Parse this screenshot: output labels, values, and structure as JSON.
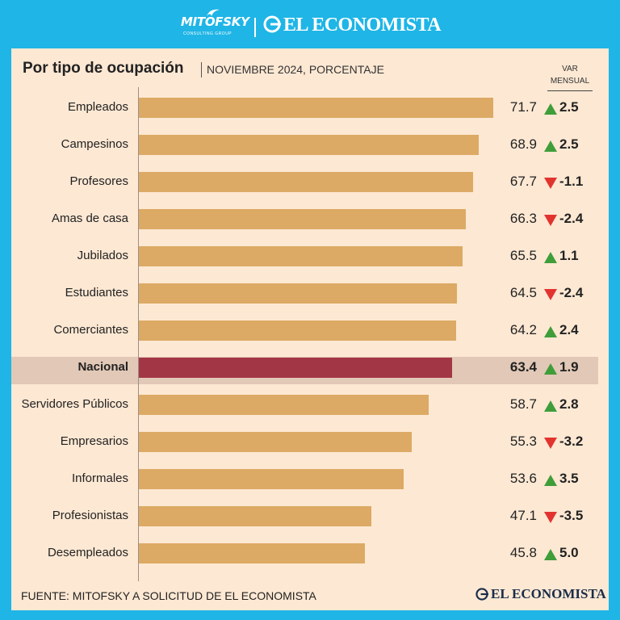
{
  "brand": {
    "mitofsky": "MITOFSKY",
    "mitofsky_tagline": "CONSULTING GROUP",
    "economista": "EL ECONOMISTA"
  },
  "title": "Por tipo de ocupación",
  "subtitle": "NOVIEMBRE 2024, PORCENTAJE",
  "var_header": "VAR MENSUAL",
  "footer": {
    "source": "FUENTE: MITOFSKY A SOLICITUD DE EL ECONOMISTA",
    "logo": "EL ECONOMISTA"
  },
  "colors": {
    "bar": "#dcaa64",
    "highlight_bar": "#a33645",
    "up": "#3f9d3a",
    "down": "#e2342f"
  },
  "chart_data": {
    "type": "bar",
    "orientation": "horizontal",
    "title": "Por tipo de ocupación",
    "subtitle": "NOVIEMBRE 2024, PORCENTAJE",
    "xlim": [
      0,
      100
    ],
    "categories": [
      "Empleados",
      "Campesinos",
      "Profesores",
      "Amas de casa",
      "Jubilados",
      "Estudiantes",
      "Comerciantes",
      "Nacional",
      "Servidores Públicos",
      "Empresarios",
      "Informales",
      "Profesionistas",
      "Desempleados"
    ],
    "values": [
      71.7,
      68.9,
      67.7,
      66.3,
      65.5,
      64.5,
      64.2,
      63.4,
      58.7,
      55.3,
      53.6,
      47.1,
      45.8
    ],
    "values_text": [
      "71.7",
      "68.9",
      "67.7",
      "66.3",
      "65.5",
      "64.5",
      "64.2",
      "63.4",
      "58.7",
      "55.3",
      "53.6",
      "47.1",
      "45.8"
    ],
    "var_mensual": [
      2.5,
      2.5,
      -1.1,
      -2.4,
      1.1,
      -2.4,
      2.4,
      1.9,
      2.8,
      -3.2,
      3.5,
      -3.5,
      5.0
    ],
    "var_mensual_text": [
      "2.5",
      "2.5",
      "-1.1",
      "-2.4",
      "1.1",
      "-2.4",
      "2.4",
      "1.9",
      "2.8",
      "-3.2",
      "3.5",
      "-3.5",
      "5.0"
    ],
    "highlight": "Nacional"
  }
}
